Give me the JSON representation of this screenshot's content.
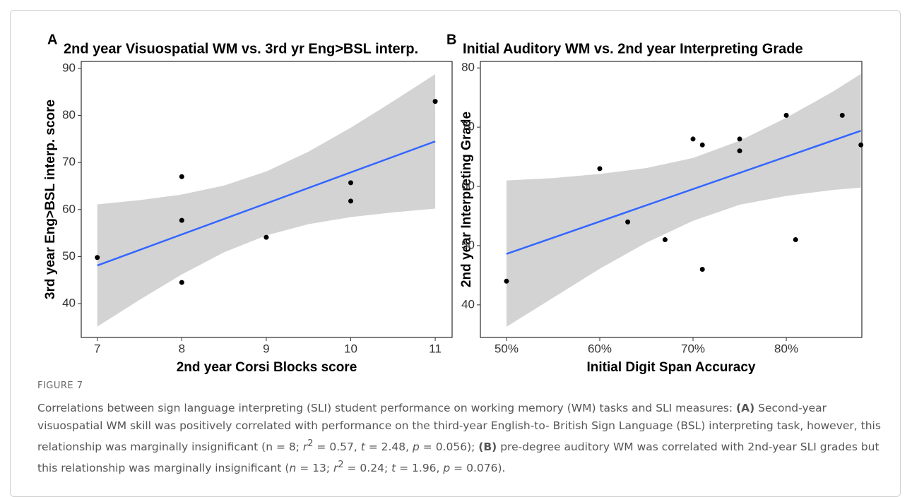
{
  "chart_data": [
    {
      "type": "scatter",
      "panel": "A",
      "title": "2nd year Visuospatial WM vs. 3rd yr Eng>BSL interp.",
      "x_label": "2nd year Corsi Blocks score",
      "y_label": "3rd year Eng>BSL interp. score",
      "x": [
        7,
        8,
        8,
        8,
        9,
        10,
        10,
        11
      ],
      "values": [
        49.8,
        67,
        57.7,
        44.5,
        54.1,
        65.7,
        61.8,
        83
      ],
      "color": "#000000",
      "fit": {
        "x": [
          7,
          11
        ],
        "y": [
          48.1,
          74.5
        ],
        "color": "#3366ff"
      },
      "band": {
        "x": [
          7,
          7.5,
          8,
          8.5,
          9,
          9.5,
          10,
          10.5,
          11
        ],
        "lower": [
          35.1,
          40.8,
          46.2,
          50.9,
          54.5,
          56.9,
          58.4,
          59.4,
          60.2
        ],
        "upper": [
          61.1,
          62.0,
          63.2,
          65.1,
          68.1,
          72.3,
          77.4,
          83.0,
          88.8
        ],
        "color": "#d3d3d3"
      },
      "xlim": [
        6.81,
        11.2
      ],
      "xticks": [
        7,
        8,
        9,
        10,
        11
      ],
      "ylim": [
        32.8,
        91.5
      ],
      "yticks": [
        40,
        50,
        60,
        70,
        80,
        90
      ],
      "grid": false
    },
    {
      "type": "scatter",
      "panel": "B",
      "title": "Initial Auditory WM vs. 2nd year Interpreting Grade",
      "x_label": "Initial Digit Span Accuracy",
      "y_label": "2nd year Interpreting Grade",
      "x": [
        50,
        60,
        63,
        67,
        70,
        71,
        71,
        75,
        75,
        80,
        81,
        86,
        88
      ],
      "values": [
        44,
        63,
        54,
        51,
        68,
        67,
        46,
        68,
        66,
        72,
        51,
        72,
        67
      ],
      "color": "#000000",
      "fit": {
        "x": [
          50,
          88
        ],
        "y": [
          48.6,
          69.4
        ],
        "color": "#3366ff"
      },
      "band": {
        "x": [
          50,
          55,
          60,
          65,
          70,
          75,
          80,
          85,
          88
        ],
        "lower": [
          36.3,
          41.2,
          46.1,
          50.5,
          54.2,
          56.9,
          58.4,
          59.4,
          59.8
        ],
        "upper": [
          61.0,
          61.4,
          62.1,
          63.1,
          64.8,
          67.7,
          71.6,
          76.0,
          79.0
        ],
        "color": "#d3d3d3"
      },
      "xlim": [
        47.2,
        88.1
      ],
      "xticks": [
        {
          "value": 50,
          "label": "50%"
        },
        {
          "value": 60,
          "label": "60%"
        },
        {
          "value": 70,
          "label": "70%"
        },
        {
          "value": 80,
          "label": "80%"
        }
      ],
      "ylim": [
        34.5,
        81.1
      ],
      "yticks": [
        40,
        50,
        60,
        70,
        80
      ],
      "grid": false
    }
  ],
  "caption": {
    "label": "FIGURE 7",
    "parts": [
      {
        "text": "Correlations between sign language interpreting (SLI) student performance on working memory (WM) tasks and SLI measures: ",
        "style": "normal"
      },
      {
        "text": "(A)",
        "style": "bold"
      },
      {
        "text": " Second-year visuospatial WM skill was positively correlated with performance on the third-year English-to- British Sign Language (BSL) interpreting task, however, this relationship was marginally insignificant (n = 8; ",
        "style": "normal"
      },
      {
        "text": "r",
        "style": "italic"
      },
      {
        "text": "2",
        "style": "sup"
      },
      {
        "text": " = 0.57, ",
        "style": "normal"
      },
      {
        "text": "t",
        "style": "italic"
      },
      {
        "text": " = 2.48, ",
        "style": "normal"
      },
      {
        "text": "p",
        "style": "italic"
      },
      {
        "text": " = 0.056); ",
        "style": "normal"
      },
      {
        "text": "(B)",
        "style": "bold"
      },
      {
        "text": " pre-degree auditory WM was correlated with 2nd-year SLI grades but this relationship was marginally insignificant (",
        "style": "normal"
      },
      {
        "text": "n",
        "style": "italic"
      },
      {
        "text": " = 13; ",
        "style": "normal"
      },
      {
        "text": "r",
        "style": "italic"
      },
      {
        "text": "2",
        "style": "sup"
      },
      {
        "text": " = 0.24; ",
        "style": "normal"
      },
      {
        "text": "t",
        "style": "italic"
      },
      {
        "text": " = 1.96, ",
        "style": "normal"
      },
      {
        "text": "p",
        "style": "italic"
      },
      {
        "text": " = 0.076).",
        "style": "normal"
      }
    ]
  }
}
